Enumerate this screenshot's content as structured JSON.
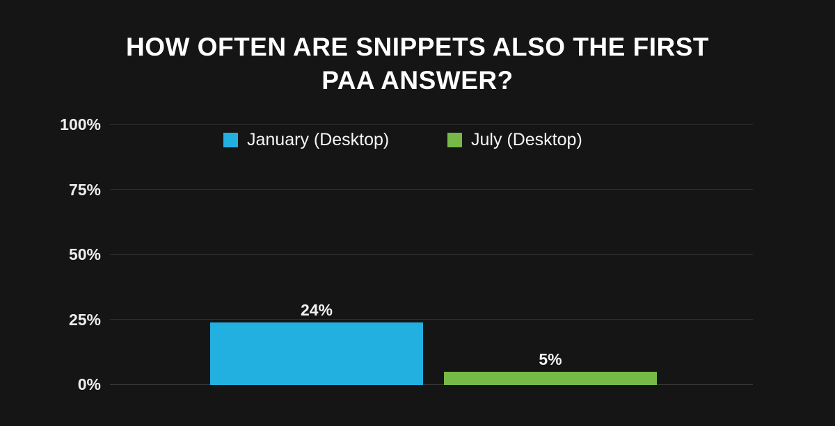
{
  "page": {
    "background": "#151515"
  },
  "title": {
    "line1": "HOW OFTEN ARE SNIPPETS ALSO THE FIRST",
    "line2": "PAA ANSWER?"
  },
  "legend": {
    "items": [
      {
        "label": "January (Desktop)",
        "color": "#22B0E0"
      },
      {
        "label": "July (Desktop)",
        "color": "#76B947"
      }
    ]
  },
  "colors": {
    "background": "#151515",
    "gridline": "#2f2f2f",
    "title_text": "#ffffff",
    "tick_text": "#ededed",
    "value_label_text": "#f2f2f2",
    "january_blue": "#22B0E0",
    "july_green": "#76B947"
  },
  "chart_data": {
    "type": "bar",
    "title": "HOW OFTEN ARE SNIPPETS ALSO THE FIRST PAA ANSWER?",
    "categories": [
      "January (Desktop)",
      "July (Desktop)"
    ],
    "values": [
      24,
      5
    ],
    "bar_labels": [
      "24%",
      "5%"
    ],
    "bar_colors": [
      "#22B0E0",
      "#76B947"
    ],
    "y_ticks": [
      100,
      75,
      50,
      25,
      0
    ],
    "y_tick_labels": [
      "100%",
      "75%",
      "50%",
      "25%",
      "0%"
    ],
    "ylim": [
      0,
      100
    ],
    "xlabel": "",
    "ylabel": "",
    "grid": "horizontal",
    "legend_position": "top-inside"
  }
}
